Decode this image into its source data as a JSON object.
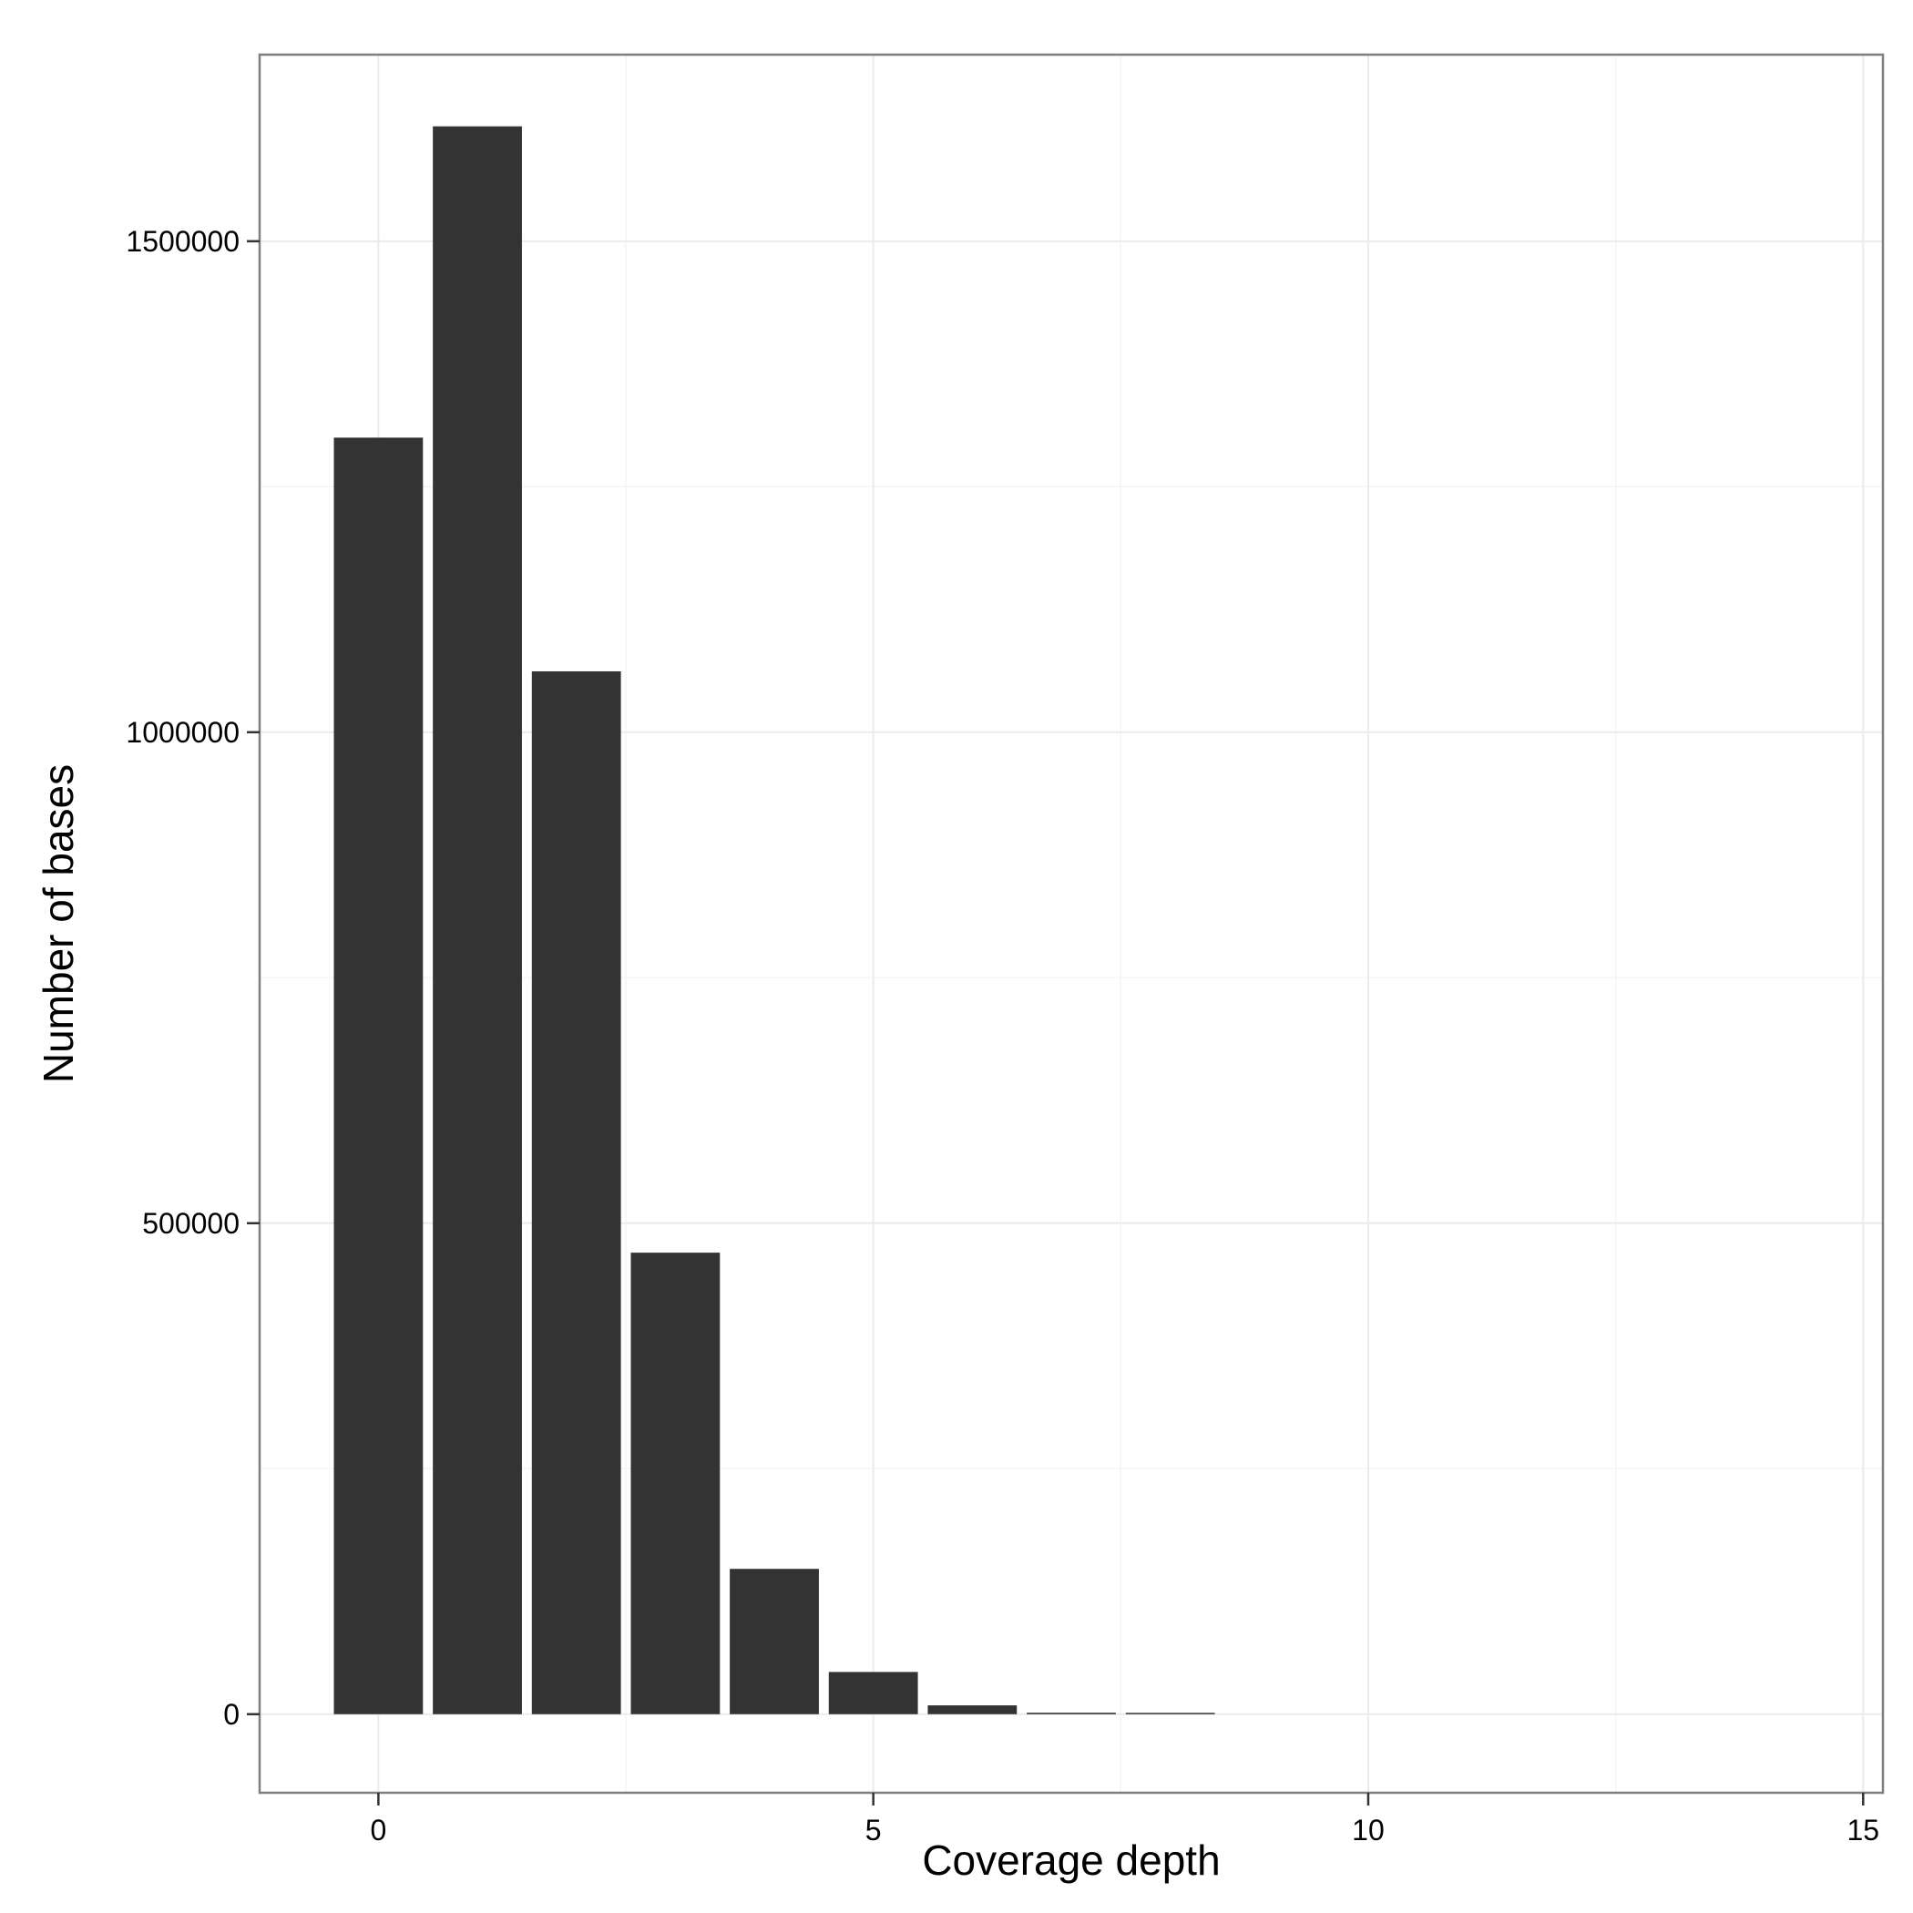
{
  "chart_data": {
    "type": "bar",
    "title": "",
    "xlabel": "Coverage depth",
    "ylabel": "Number of bases",
    "x": [
      0,
      1,
      2,
      3,
      4,
      5,
      6,
      7,
      8
    ],
    "values": [
      1300000,
      1617000,
      1062000,
      470000,
      148000,
      43000,
      9000,
      1500,
      500
    ],
    "bar_color": "#333333",
    "xlim": [
      -1.2,
      15.2
    ],
    "ylim": [
      -80000,
      1690000
    ],
    "xticks": [
      0,
      5,
      10,
      15
    ],
    "xtick_labels": [
      "0",
      "5",
      "10",
      "15"
    ],
    "yticks": [
      0,
      500000,
      1000000,
      1500000
    ],
    "ytick_labels": [
      "0",
      "500000",
      "1000000",
      "1500000"
    ],
    "grid": true,
    "legend": "none",
    "background": "#ffffff",
    "panel_border_color": "#7f7f7f",
    "grid_major_color": "#ebebeb",
    "grid_minor_color": "#f5f5f5"
  }
}
